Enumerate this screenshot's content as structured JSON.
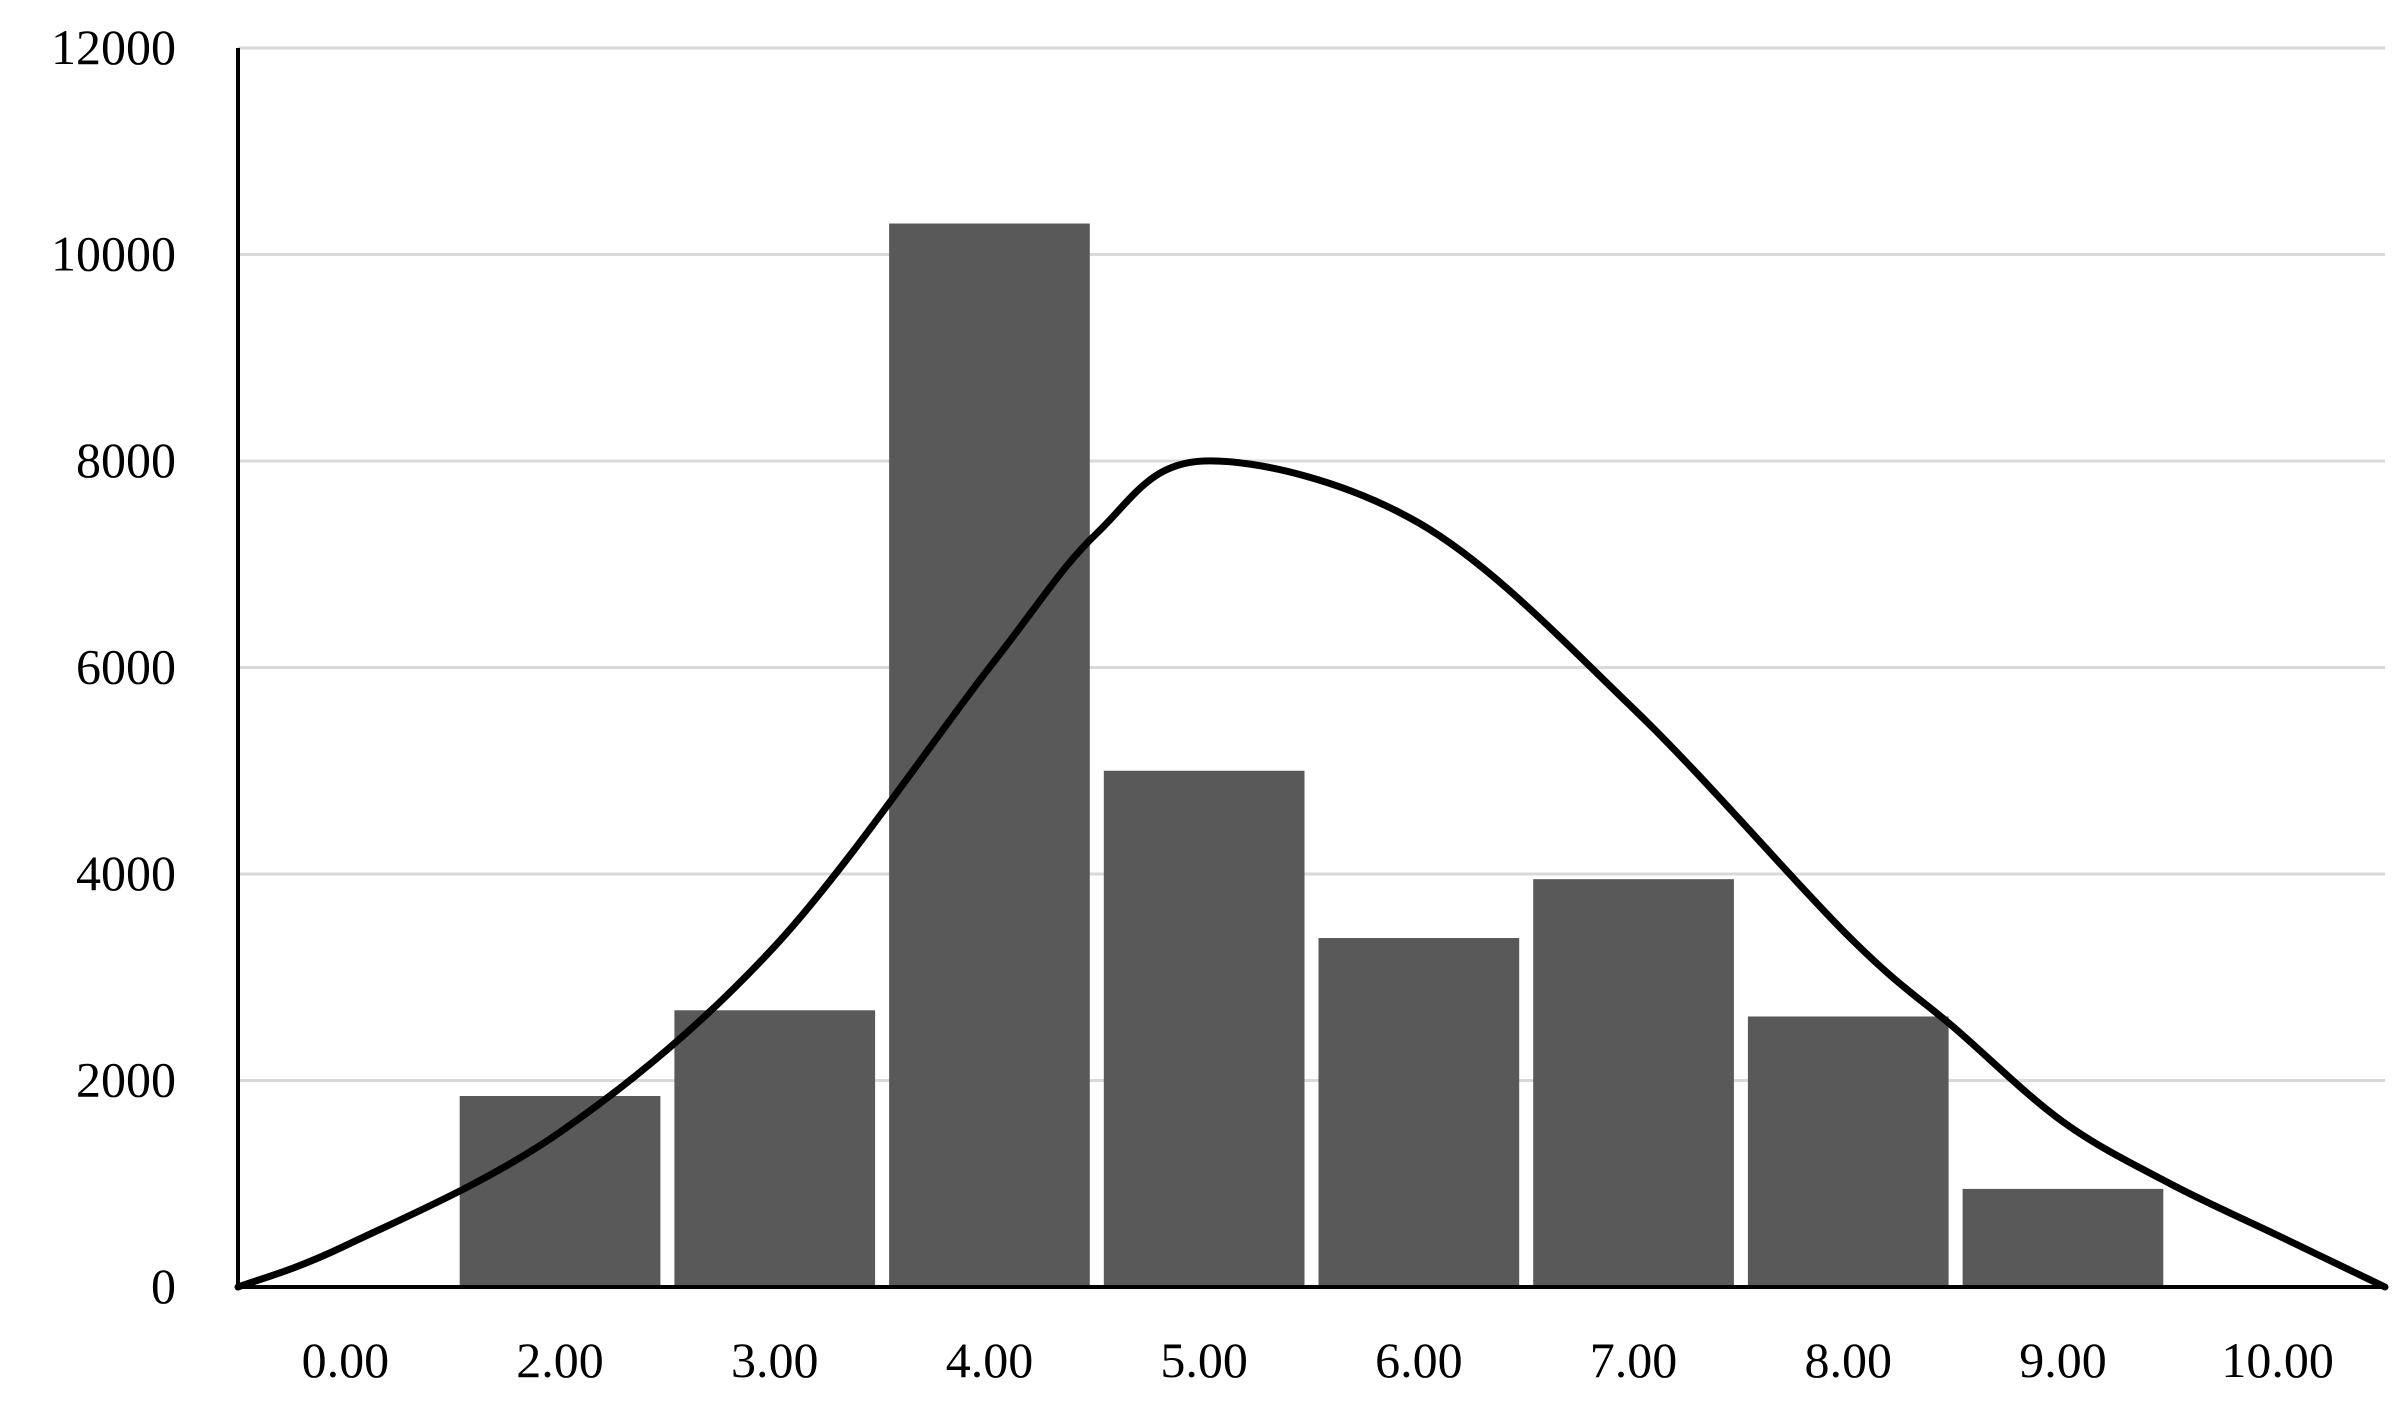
{
  "chart_data": {
    "type": "bar",
    "title": "",
    "xlabel": "",
    "ylabel": "",
    "categories": [
      "0.00",
      "2.00",
      "3.00",
      "4.00",
      "5.00",
      "6.00",
      "7.00",
      "8.00",
      "9.00",
      "10.00"
    ],
    "values": [
      0,
      1850,
      2680,
      10300,
      5000,
      3380,
      3950,
      2620,
      950,
      0
    ],
    "ylim": [
      0,
      12000
    ],
    "yticks": [
      "0",
      "2000",
      "4000",
      "6000",
      "8000",
      "10000",
      "12000"
    ],
    "grid": true,
    "legend": "none",
    "bar_color": "#595959",
    "grid_color": "#d9d9d9",
    "axis_color": "#000000",
    "overlay": {
      "type": "line",
      "description_free": true,
      "x_positions": [
        0.5,
        1,
        2,
        3,
        4,
        4.5,
        5,
        6,
        7,
        8,
        8.5,
        9,
        9.5,
        10,
        10.5
      ],
      "values": [
        0,
        400,
        1500,
        3300,
        6000,
        7300,
        8000,
        7400,
        5600,
        3400,
        2500,
        1600,
        1000,
        500,
        0
      ],
      "color": "#000000"
    }
  }
}
